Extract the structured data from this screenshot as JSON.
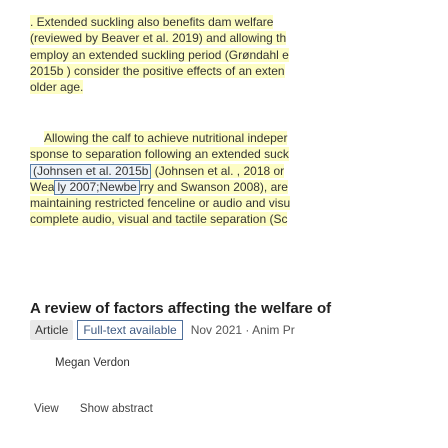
{
  "paragraph1": {
    "lines": [
      ". Extended suckling also benefits dam welfare",
      "(reviewed by Beaver et al. 2019) and allowing th",
      "employ an extended suckling period (Grøndahl e",
      "2015b ) consider the positive effects of an exten",
      "older age."
    ]
  },
  "paragraph2": {
    "line1": "Allowing the calf to achieve nutritional indeper",
    "line2": "sponse to separation following an extended suck",
    "line3_cite": "(Johnsen et al. 2015b",
    "line3_rest": " (Johnsen et al. , 2018 or",
    "line4_a": "Wea",
    "line4_cite": "ly 2007;Newbe",
    "line4_rest": "rry and Swanson 2008), are",
    "line5": "maintaining restricted fenceline or audio and visu",
    "line6": "complete audio, visual and tactile separation (Sc"
  },
  "result": {
    "title": "A review of factors affecting the welfare of",
    "article_badge": "Article",
    "fulltext_badge": "Full-text available",
    "date": "Nov 2021 · Anim Pr",
    "author": "Megan Verdon",
    "actions": {
      "view": "View",
      "show_abstract": "Show abstract"
    }
  },
  "colors": {
    "highlight": "#fdfdc4",
    "link_border": "#5a7fa8",
    "text": "#333333"
  }
}
